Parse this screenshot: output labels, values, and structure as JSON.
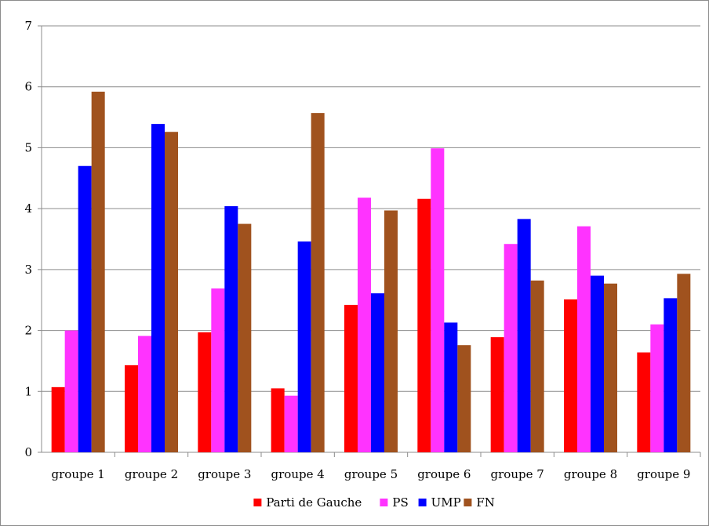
{
  "chart_data": {
    "type": "bar",
    "categories": [
      "groupe 1",
      "groupe 2",
      "groupe 3",
      "groupe 4",
      "groupe 5",
      "groupe 6",
      "groupe 7",
      "groupe 8",
      "groupe 9"
    ],
    "series": [
      {
        "name": "Parti de Gauche",
        "color": "#ff0000",
        "values": [
          1.07,
          1.43,
          1.97,
          1.05,
          2.42,
          4.16,
          1.89,
          2.51,
          1.64
        ]
      },
      {
        "name": "PS",
        "color": "#ff33ff",
        "values": [
          2.0,
          1.91,
          2.69,
          0.93,
          4.18,
          4.99,
          3.42,
          3.71,
          2.1
        ]
      },
      {
        "name": "UMP",
        "color": "#0000ff",
        "values": [
          4.7,
          5.39,
          4.04,
          3.46,
          2.61,
          2.13,
          3.83,
          2.9,
          2.53
        ]
      },
      {
        "name": "FN",
        "color": "#a0521e",
        "values": [
          5.92,
          5.26,
          3.75,
          5.57,
          3.97,
          1.76,
          2.82,
          2.77,
          2.93
        ]
      }
    ],
    "ylim": [
      0,
      7
    ],
    "yticks": [
      "0",
      "1",
      "2",
      "3",
      "4",
      "5",
      "6",
      "7"
    ],
    "grid": true,
    "legend_position": "bottom",
    "title": "",
    "xlabel": "",
    "ylabel": ""
  }
}
